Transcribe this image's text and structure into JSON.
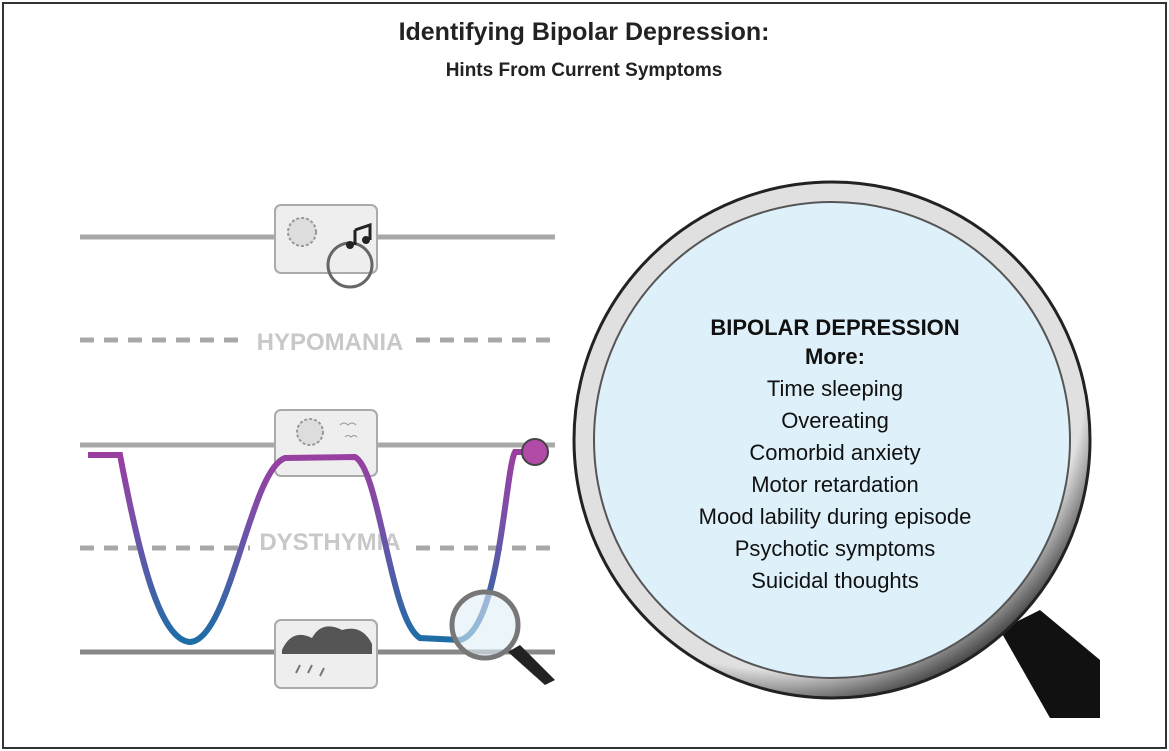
{
  "header": {
    "title": "Identifying Bipolar Depression:",
    "subtitle": "Hints From Current Symptoms"
  },
  "levels": [
    {
      "label": "HYPOMANIA"
    },
    {
      "label": "DYSTHYMIA"
    }
  ],
  "magnifier": {
    "heading": "BIPOLAR DEPRESSION",
    "subheading": "More:",
    "items": [
      "Time sleeping",
      "Overeating",
      "Comorbid anxiety",
      "Motor retardation",
      "Mood lability during episode",
      "Psychotic symptoms",
      "Suicidal thoughts"
    ]
  }
}
